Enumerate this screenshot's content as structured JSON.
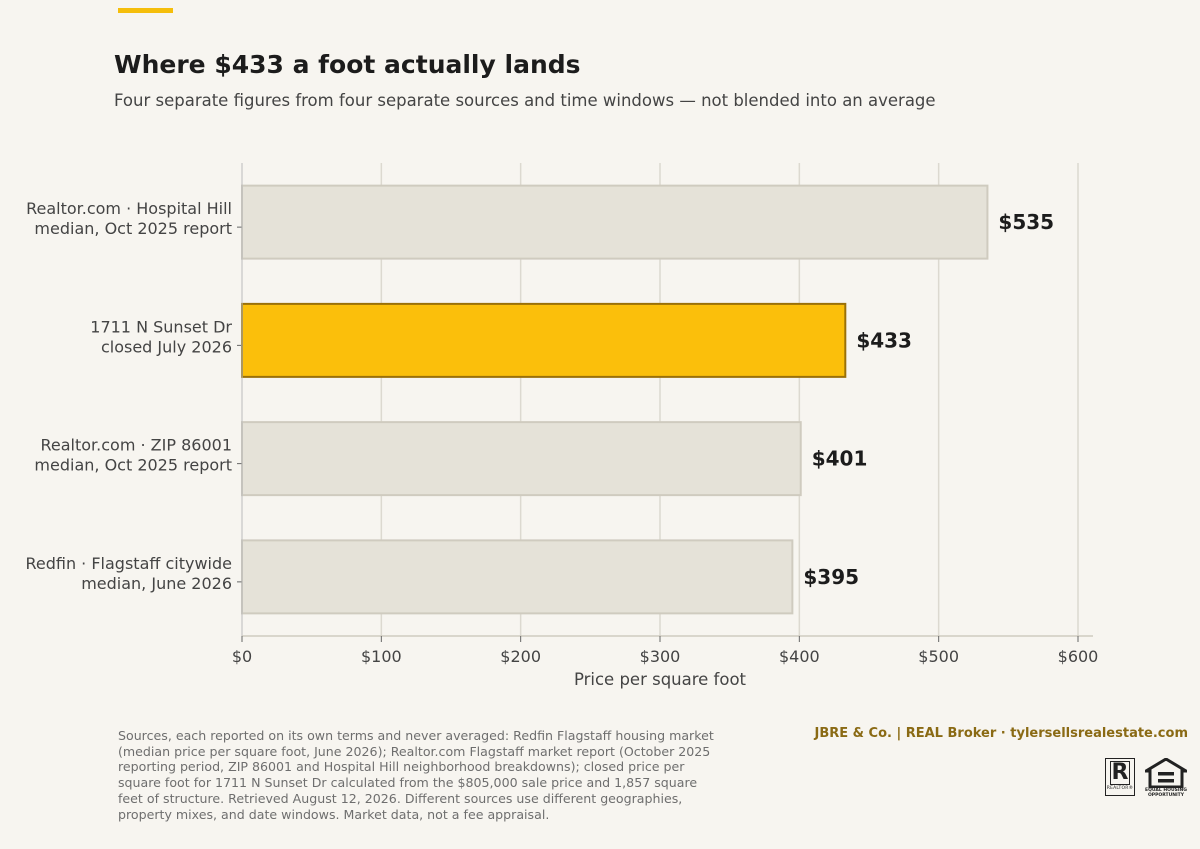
{
  "header": {
    "title": "Where $433 a foot actually lands",
    "subtitle": "Four separate figures from four separate sources and time windows — not blended into an average"
  },
  "chart_data": {
    "type": "bar",
    "orientation": "horizontal",
    "categories": [
      [
        "Realtor.com · Hospital Hill",
        "median, Oct 2025 report"
      ],
      [
        "1711 N Sunset Dr",
        "closed July 2026"
      ],
      [
        "Realtor.com · ZIP 86001",
        "median, Oct 2025 report"
      ],
      [
        "Redfin · Flagstaff citywide",
        "median, June 2026"
      ]
    ],
    "values": [
      535,
      433,
      401,
      395
    ],
    "value_labels": [
      "$535",
      "$433",
      "$401",
      "$395"
    ],
    "highlight_index": 1,
    "xlabel": "Price per square foot",
    "xlim": [
      0,
      600
    ],
    "xticks": [
      0,
      100,
      200,
      300,
      400,
      500,
      600
    ],
    "xtick_labels": [
      "$0",
      "$100",
      "$200",
      "$300",
      "$400",
      "$500",
      "$600"
    ],
    "grid": "vertical",
    "colors": {
      "bar": "#e5e2d8",
      "bar_edge": "#cfcbbf",
      "highlight": "#fbbf0b",
      "highlight_edge": "#9a7008",
      "grid": "#dcd9d0",
      "text": "#1c1c1c",
      "axis_text": "#444444"
    }
  },
  "footer": {
    "sources": "Sources, each reported on its own terms and never averaged: Redfin Flagstaff housing market (median price per square foot, June 2026); Realtor.com Flagstaff market report (October 2025 reporting period, ZIP 86001 and Hospital Hill neighborhood breakdowns); closed price per square foot for 1711 N Sunset Dr calculated from the $805,000 sale price and 1,857 square feet of structure. Retrieved August 12, 2026. Different sources use different geographies, property mixes, and date windows. Market data, not a fee appraisal.",
    "brand": "JBRE & Co.  |  REAL Broker   ·   tylersellsrealestate.com",
    "realtor_logo_text": "REALTOR®",
    "eho_logo_text": [
      "EQUAL HOUSING",
      "OPPORTUNITY"
    ]
  }
}
